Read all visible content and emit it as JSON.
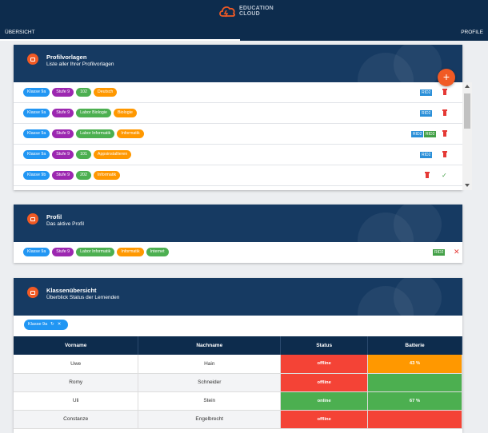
{
  "header": {
    "logo_line1": "EDUCATION",
    "logo_line2": "CLOUD",
    "nav_left": "ÜBERSICHT",
    "nav_right": "PROFILE"
  },
  "colors": {
    "header": "#163a62",
    "accent": "#f15a24",
    "offline": "#f44336",
    "online": "#4caf50",
    "battery_warn": "#ff9800",
    "battery_ok": "#4caf50"
  },
  "templates": {
    "title": "Profilvorlagen",
    "subtitle": "Liste aller Ihrer Profilvorlagen",
    "add_label": "+",
    "rows": [
      {
        "chips": [
          "Klasse 9a",
          "Stufe 9",
          "102",
          "Deutsch"
        ],
        "rid": [
          "RID2"
        ],
        "check": false
      },
      {
        "chips": [
          "Klasse 9a",
          "Stufe 9",
          "Labor Biologie",
          "Biologie"
        ],
        "rid": [
          "RID2"
        ],
        "check": false
      },
      {
        "chips": [
          "Klasse 9a",
          "Stufe 9",
          "Labor Informatik",
          "Informatik"
        ],
        "rid": [
          "RID2",
          "RID2"
        ],
        "check": false
      },
      {
        "chips": [
          "Klasse 9a",
          "Stufe 9",
          "101",
          "Appsinstallieren"
        ],
        "rid": [
          "RID2"
        ],
        "check": false
      },
      {
        "chips": [
          "Klasse 9b",
          "Stufe 9",
          "202",
          "Informatik"
        ],
        "rid": [],
        "check": true
      }
    ]
  },
  "profile": {
    "title": "Profil",
    "subtitle": "Das aktive Profil",
    "chips": [
      "Klasse 9a",
      "Stufe 9",
      "Labor Informatik",
      "Informatik",
      "Internet"
    ],
    "rid": "RID2",
    "close": "✕"
  },
  "classes": {
    "title": "Klassenübersicht",
    "subtitle": "Überblick Status der Lernenden",
    "filter": "Klasse 9a",
    "refresh": "↻",
    "remove": "✕",
    "columns": [
      "Vorname",
      "Nachname",
      "Status",
      "Batterie"
    ],
    "students": [
      {
        "first": "Uwe",
        "last": "Hain",
        "status": "offline",
        "battery": "43 %",
        "battery_state": "warn"
      },
      {
        "first": "Romy",
        "last": "Schneider",
        "status": "offline",
        "battery": "",
        "battery_state": "ok"
      },
      {
        "first": "Uli",
        "last": "Stein",
        "status": "online",
        "battery": "67 %",
        "battery_state": "ok"
      },
      {
        "first": "Constanze",
        "last": "Engelbrecht",
        "status": "offline",
        "battery": "",
        "battery_state": "off"
      }
    ]
  }
}
